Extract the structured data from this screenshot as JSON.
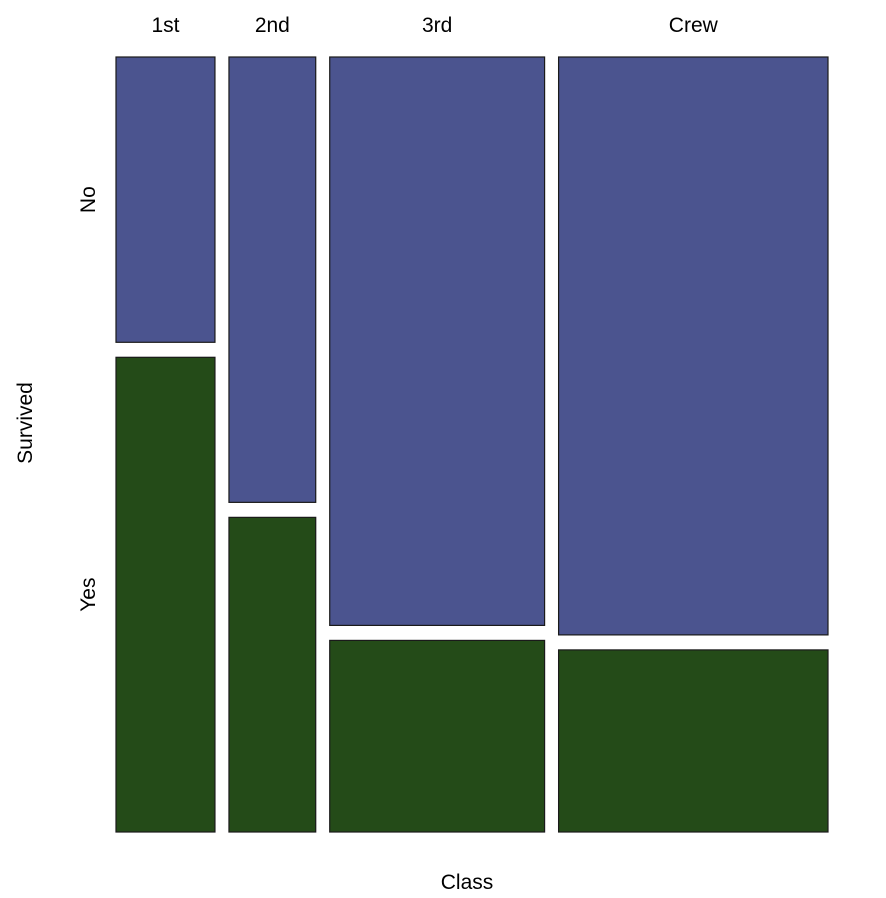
{
  "chart_data": {
    "type": "mosaic",
    "title": "",
    "xlabel": "Class",
    "ylabel": "Survived",
    "categories": [
      "1st",
      "2nd",
      "3rd",
      "Crew"
    ],
    "category_shares": [
      0.1477,
      0.1295,
      0.3207,
      0.4021
    ],
    "levels": [
      {
        "name": "No",
        "color": "#4b548f"
      },
      {
        "name": "Yes",
        "color": "#244b18"
      }
    ],
    "series": [
      {
        "name": "No",
        "values": [
          0.3754,
          0.586,
          0.7479,
          0.7604
        ]
      },
      {
        "name": "Yes",
        "values": [
          0.6246,
          0.414,
          0.2521,
          0.2396
        ]
      }
    ],
    "legend": "none",
    "grid": false
  }
}
